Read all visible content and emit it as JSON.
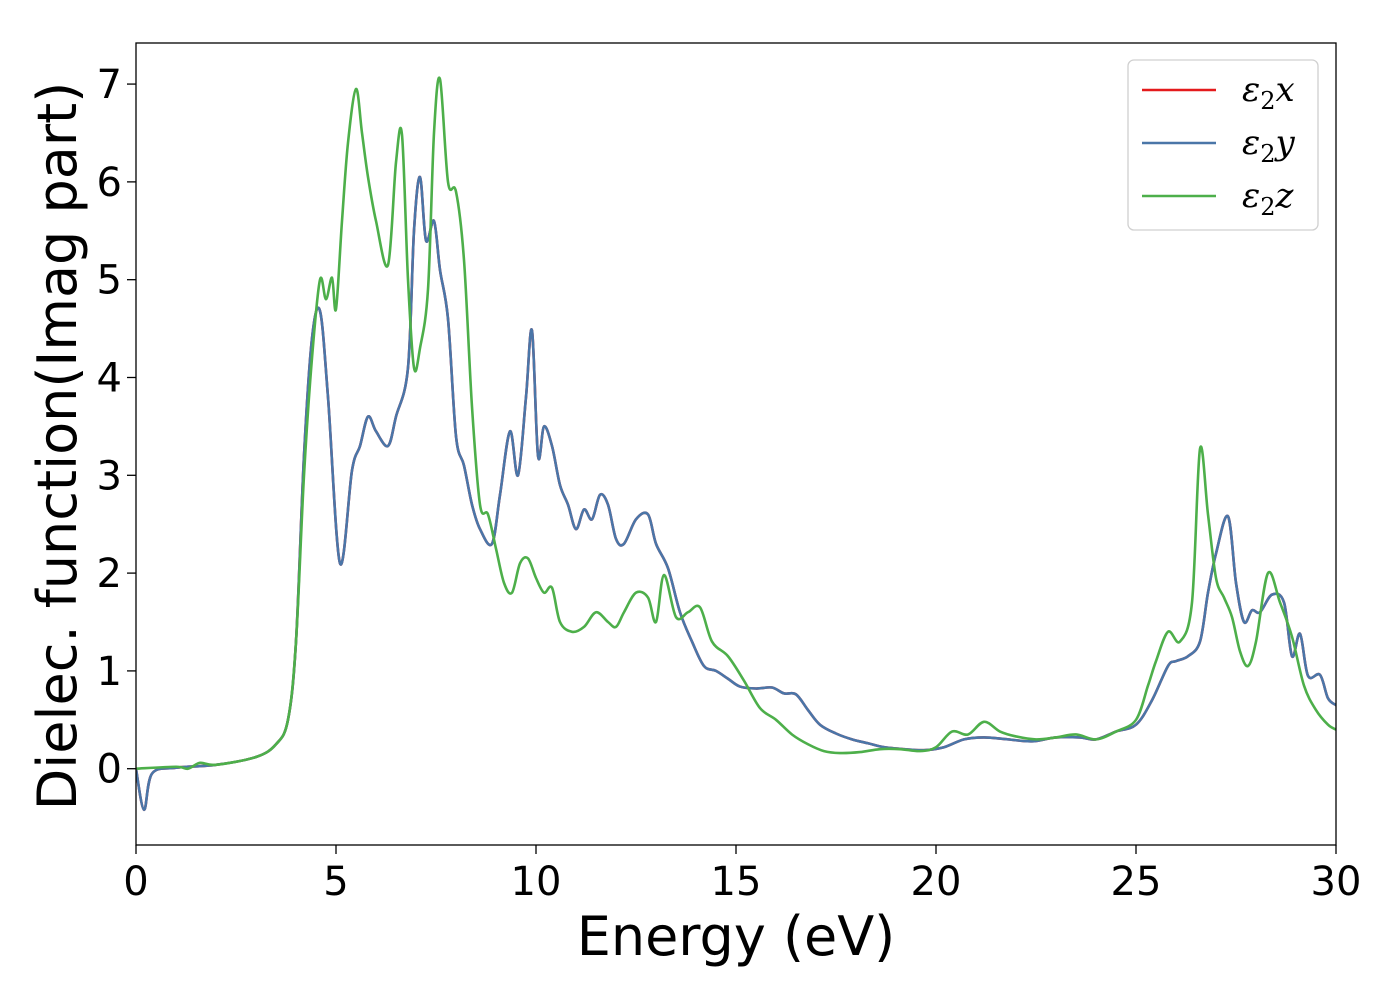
{
  "chart_data": {
    "type": "line",
    "title": "",
    "xlabel": "Energy (eV)",
    "ylabel": "Dielec. function(Imag part)",
    "xlim": [
      0,
      30
    ],
    "ylim": [
      -0.78,
      7.42
    ],
    "xticks": [
      "0",
      "5",
      "10",
      "15",
      "20",
      "25",
      "30"
    ],
    "yticks": [
      "0",
      "1",
      "2",
      "3",
      "4",
      "5",
      "6",
      "7"
    ],
    "grid": false,
    "legend_position": "top-right",
    "series": [
      {
        "name": "ε2x",
        "legend_main": "ε",
        "legend_sub": "2",
        "legend_var": "x",
        "color": "#e41a1c",
        "x": [
          0,
          0.2,
          0.4,
          1.0,
          2.0,
          3.0,
          3.5,
          3.8,
          4.0,
          4.2,
          4.4,
          4.6,
          4.8,
          5.1,
          5.4,
          5.6,
          5.8,
          6.0,
          6.3,
          6.5,
          6.8,
          6.95,
          7.1,
          7.25,
          7.45,
          7.6,
          7.8,
          8.0,
          8.2,
          8.4,
          8.6,
          8.9,
          9.1,
          9.35,
          9.55,
          9.75,
          9.9,
          10.05,
          10.2,
          10.4,
          10.6,
          10.8,
          11.0,
          11.2,
          11.4,
          11.6,
          11.8,
          12.0,
          12.2,
          12.5,
          12.8,
          13.0,
          13.3,
          13.6,
          13.9,
          14.2,
          14.5,
          14.8,
          15.1,
          15.5,
          15.9,
          16.2,
          16.5,
          16.8,
          17.1,
          17.5,
          17.9,
          18.3,
          18.7,
          19.2,
          19.7,
          20.2,
          20.7,
          21.2,
          21.8,
          22.4,
          23.0,
          23.6,
          24.0,
          24.5,
          25.0,
          25.4,
          25.8,
          26.0,
          26.3,
          26.6,
          26.8,
          27.0,
          27.3,
          27.5,
          27.7,
          27.9,
          28.1,
          28.4,
          28.7,
          28.9,
          29.1,
          29.3,
          29.6,
          29.8,
          30.0
        ],
        "y": [
          0.0,
          -0.42,
          -0.05,
          0.01,
          0.04,
          0.12,
          0.25,
          0.5,
          1.3,
          3.2,
          4.4,
          4.68,
          3.8,
          2.1,
          3.05,
          3.3,
          3.6,
          3.45,
          3.3,
          3.6,
          4.1,
          5.5,
          6.05,
          5.4,
          5.6,
          5.1,
          4.6,
          3.4,
          3.1,
          2.7,
          2.45,
          2.3,
          2.8,
          3.45,
          3.0,
          3.8,
          4.48,
          3.2,
          3.5,
          3.3,
          2.9,
          2.7,
          2.45,
          2.65,
          2.55,
          2.8,
          2.7,
          2.35,
          2.3,
          2.55,
          2.6,
          2.3,
          2.05,
          1.6,
          1.3,
          1.05,
          1.0,
          0.92,
          0.84,
          0.82,
          0.83,
          0.77,
          0.76,
          0.6,
          0.45,
          0.36,
          0.3,
          0.26,
          0.22,
          0.2,
          0.19,
          0.22,
          0.3,
          0.32,
          0.3,
          0.28,
          0.32,
          0.32,
          0.3,
          0.38,
          0.45,
          0.7,
          1.05,
          1.1,
          1.15,
          1.3,
          1.8,
          2.2,
          2.58,
          1.9,
          1.5,
          1.62,
          1.6,
          1.78,
          1.7,
          1.15,
          1.38,
          0.95,
          0.96,
          0.72,
          0.65
        ]
      },
      {
        "name": "ε2y",
        "legend_main": "ε",
        "legend_sub": "2",
        "legend_var": "y",
        "color": "#4a76a8",
        "x": [
          0,
          0.2,
          0.4,
          1.0,
          2.0,
          3.0,
          3.5,
          3.8,
          4.0,
          4.2,
          4.4,
          4.6,
          4.8,
          5.1,
          5.4,
          5.6,
          5.8,
          6.0,
          6.3,
          6.5,
          6.8,
          6.95,
          7.1,
          7.25,
          7.45,
          7.6,
          7.8,
          8.0,
          8.2,
          8.4,
          8.6,
          8.9,
          9.1,
          9.35,
          9.55,
          9.75,
          9.9,
          10.05,
          10.2,
          10.4,
          10.6,
          10.8,
          11.0,
          11.2,
          11.4,
          11.6,
          11.8,
          12.0,
          12.2,
          12.5,
          12.8,
          13.0,
          13.3,
          13.6,
          13.9,
          14.2,
          14.5,
          14.8,
          15.1,
          15.5,
          15.9,
          16.2,
          16.5,
          16.8,
          17.1,
          17.5,
          17.9,
          18.3,
          18.7,
          19.2,
          19.7,
          20.2,
          20.7,
          21.2,
          21.8,
          22.4,
          23.0,
          23.6,
          24.0,
          24.5,
          25.0,
          25.4,
          25.8,
          26.0,
          26.3,
          26.6,
          26.8,
          27.0,
          27.3,
          27.5,
          27.7,
          27.9,
          28.1,
          28.4,
          28.7,
          28.9,
          29.1,
          29.3,
          29.6,
          29.8,
          30.0
        ],
        "y": [
          0.0,
          -0.42,
          -0.05,
          0.01,
          0.04,
          0.12,
          0.25,
          0.5,
          1.3,
          3.2,
          4.4,
          4.68,
          3.8,
          2.1,
          3.05,
          3.3,
          3.6,
          3.45,
          3.3,
          3.6,
          4.1,
          5.5,
          6.05,
          5.4,
          5.6,
          5.1,
          4.6,
          3.4,
          3.1,
          2.7,
          2.45,
          2.3,
          2.8,
          3.45,
          3.0,
          3.8,
          4.48,
          3.2,
          3.5,
          3.3,
          2.9,
          2.7,
          2.45,
          2.65,
          2.55,
          2.8,
          2.7,
          2.35,
          2.3,
          2.55,
          2.6,
          2.3,
          2.05,
          1.6,
          1.3,
          1.05,
          1.0,
          0.92,
          0.84,
          0.82,
          0.83,
          0.77,
          0.76,
          0.6,
          0.45,
          0.36,
          0.3,
          0.26,
          0.22,
          0.2,
          0.19,
          0.22,
          0.3,
          0.32,
          0.3,
          0.28,
          0.32,
          0.32,
          0.3,
          0.38,
          0.45,
          0.7,
          1.05,
          1.1,
          1.15,
          1.3,
          1.8,
          2.2,
          2.58,
          1.9,
          1.5,
          1.62,
          1.6,
          1.78,
          1.7,
          1.15,
          1.38,
          0.95,
          0.96,
          0.72,
          0.65
        ]
      },
      {
        "name": "ε2z",
        "legend_main": "ε",
        "legend_sub": "2",
        "legend_var": "z",
        "color": "#4daf4a",
        "x": [
          0,
          1.0,
          1.3,
          1.6,
          2.0,
          3.0,
          3.5,
          3.8,
          4.0,
          4.2,
          4.4,
          4.6,
          4.75,
          4.9,
          5.0,
          5.15,
          5.3,
          5.5,
          5.65,
          5.8,
          6.0,
          6.3,
          6.5,
          6.65,
          6.8,
          6.95,
          7.1,
          7.3,
          7.45,
          7.6,
          7.8,
          8.0,
          8.2,
          8.4,
          8.6,
          8.8,
          9.0,
          9.2,
          9.4,
          9.6,
          9.8,
          10.0,
          10.2,
          10.4,
          10.6,
          10.9,
          11.2,
          11.5,
          11.8,
          12.0,
          12.2,
          12.5,
          12.8,
          13.0,
          13.2,
          13.5,
          13.8,
          14.1,
          14.4,
          14.8,
          15.2,
          15.6,
          16.0,
          16.4,
          16.8,
          17.2,
          17.6,
          18.1,
          18.6,
          19.1,
          19.6,
          20.0,
          20.4,
          20.8,
          21.2,
          21.6,
          22.0,
          22.5,
          23.0,
          23.5,
          24.0,
          24.5,
          25.0,
          25.3,
          25.5,
          25.8,
          26.1,
          26.4,
          26.6,
          26.8,
          27.0,
          27.2,
          27.4,
          27.6,
          27.8,
          28.0,
          28.3,
          28.6,
          28.9,
          29.2,
          29.5,
          29.8,
          30.0
        ],
        "y": [
          0.0,
          0.02,
          0.0,
          0.06,
          0.04,
          0.12,
          0.25,
          0.5,
          1.3,
          3.0,
          4.2,
          5.0,
          4.8,
          5.02,
          4.7,
          5.6,
          6.4,
          6.95,
          6.5,
          6.05,
          5.6,
          5.15,
          6.2,
          6.48,
          5.0,
          4.1,
          4.3,
          4.9,
          6.5,
          7.05,
          6.0,
          5.9,
          5.2,
          3.7,
          2.7,
          2.6,
          2.25,
          1.9,
          1.8,
          2.1,
          2.15,
          1.95,
          1.8,
          1.85,
          1.5,
          1.4,
          1.45,
          1.6,
          1.5,
          1.45,
          1.6,
          1.8,
          1.75,
          1.5,
          1.98,
          1.55,
          1.6,
          1.65,
          1.3,
          1.15,
          0.9,
          0.62,
          0.5,
          0.35,
          0.25,
          0.18,
          0.16,
          0.17,
          0.2,
          0.2,
          0.18,
          0.22,
          0.38,
          0.35,
          0.48,
          0.38,
          0.33,
          0.3,
          0.32,
          0.35,
          0.3,
          0.38,
          0.5,
          0.85,
          1.1,
          1.4,
          1.3,
          1.7,
          3.27,
          2.6,
          1.95,
          1.75,
          1.55,
          1.2,
          1.05,
          1.3,
          2.0,
          1.7,
          1.35,
          0.85,
          0.6,
          0.45,
          0.4
        ]
      }
    ]
  }
}
